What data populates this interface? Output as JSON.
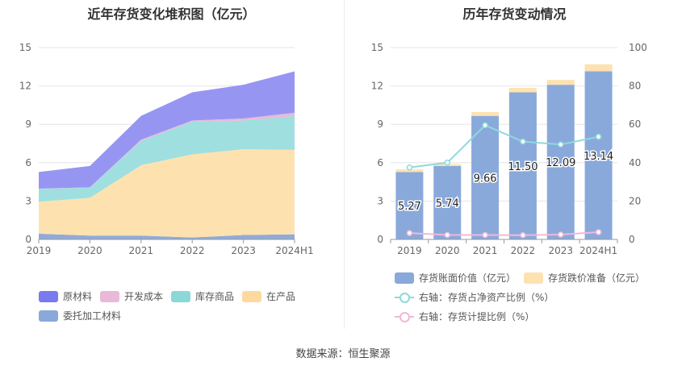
{
  "left_title": "近年存货变化堆积图（亿元）",
  "right_title": "历年存货变动情况",
  "source": "数据来源：恒生聚源",
  "chart_data": [
    {
      "type": "area",
      "stacked": true,
      "title": "近年存货变化堆积图（亿元）",
      "categories": [
        "2019",
        "2020",
        "2021",
        "2022",
        "2023",
        "2024H1"
      ],
      "ylim": [
        0,
        15
      ],
      "yticks": [
        0,
        3,
        6,
        9,
        12,
        15
      ],
      "series": [
        {
          "name": "委托加工材料",
          "color": "#91abd8",
          "values": [
            0.45,
            0.3,
            0.3,
            0.15,
            0.35,
            0.4
          ]
        },
        {
          "name": "在产品",
          "color": "#fde2b0",
          "values": [
            2.5,
            2.95,
            5.5,
            6.5,
            6.7,
            6.6
          ]
        },
        {
          "name": "库存商品",
          "color": "#9fdfe0",
          "values": [
            1.0,
            0.8,
            1.9,
            2.55,
            2.25,
            2.65
          ]
        },
        {
          "name": "开发成本",
          "color": "#e9b9d8",
          "values": [
            0.02,
            0.02,
            0.1,
            0.1,
            0.15,
            0.25
          ]
        },
        {
          "name": "原材料",
          "color": "#9696f2",
          "values": [
            1.3,
            1.67,
            1.86,
            2.2,
            2.64,
            3.24
          ]
        }
      ],
      "legend_order": [
        "原材料",
        "开发成本",
        "库存商品",
        "在产品",
        "委托加工材料"
      ]
    },
    {
      "type": "bar",
      "title": "历年存货变动情况",
      "categories": [
        "2019",
        "2020",
        "2021",
        "2022",
        "2023",
        "2024H1"
      ],
      "ylim": [
        0,
        15
      ],
      "yticks": [
        0,
        3,
        6,
        9,
        12,
        15
      ],
      "y2lim": [
        0,
        100
      ],
      "y2ticks": [
        0,
        20,
        40,
        60,
        80,
        100
      ],
      "series": [
        {
          "name": "存货账面价值（亿元）",
          "color": "#8aa9db",
          "values": [
            5.27,
            5.74,
            9.66,
            11.5,
            12.09,
            13.14
          ],
          "labels": [
            "5.27",
            "5.74",
            "9.66",
            "11.50",
            "12.09",
            "13.14"
          ]
        },
        {
          "name": "存货跌价准备（亿元）",
          "color": "#fde2b0",
          "values": [
            0.2,
            0.15,
            0.3,
            0.35,
            0.38,
            0.55
          ]
        }
      ],
      "line_series": [
        {
          "name": "右轴：存货占净资产比例（%）",
          "color": "#8fd9dc",
          "axis": "right",
          "values": [
            37.5,
            40.0,
            59.5,
            51.0,
            49.5,
            53.5
          ]
        },
        {
          "name": "右轴：存货计提比例（%）",
          "color": "#f0b9d9",
          "axis": "right",
          "values": [
            3.3,
            2.3,
            2.3,
            2.2,
            2.5,
            3.8
          ]
        }
      ]
    }
  ]
}
